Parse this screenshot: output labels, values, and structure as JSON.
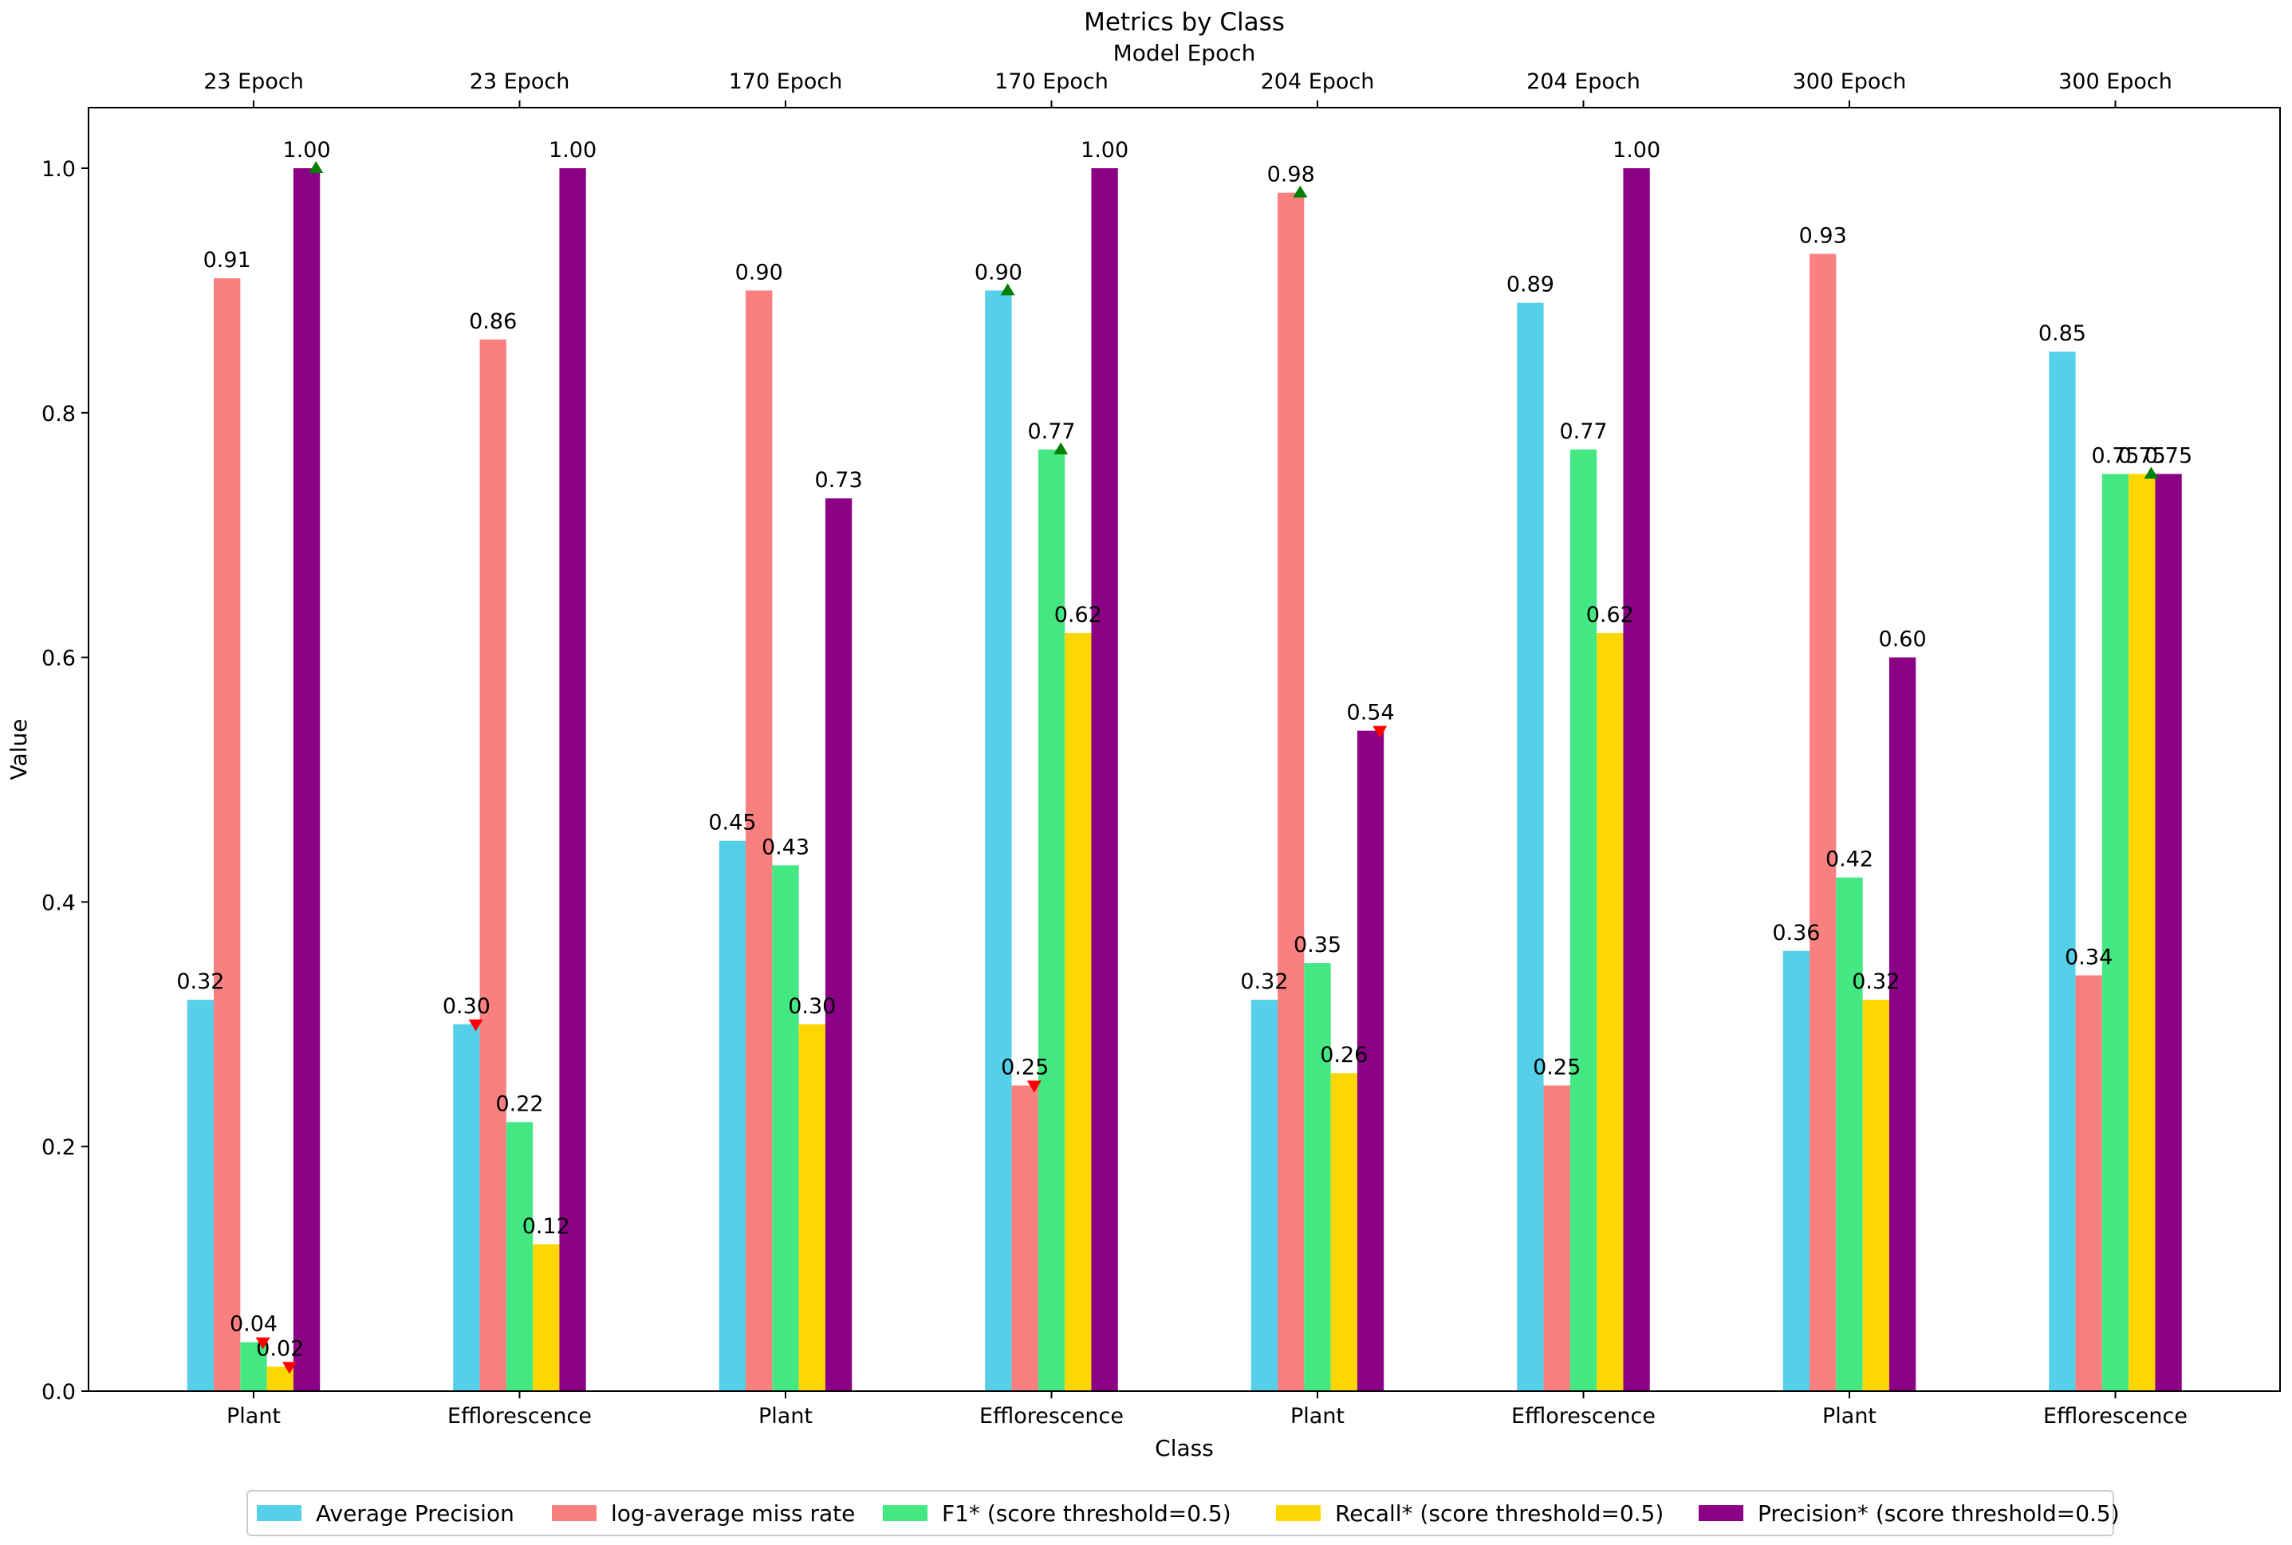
{
  "chart_data": {
    "type": "bar",
    "title": "Metrics by Class",
    "top_axis_label": "Model Epoch",
    "top_tick_labels": [
      "23 Epoch",
      "23 Epoch",
      "170 Epoch",
      "170 Epoch",
      "204 Epoch",
      "204 Epoch",
      "300 Epoch",
      "300 Epoch"
    ],
    "categories": [
      "Plant",
      "Efflorescence",
      "Plant",
      "Efflorescence",
      "Plant",
      "Efflorescence",
      "Plant",
      "Efflorescence"
    ],
    "xlabel": "Class",
    "ylabel": "Value",
    "ylim": [
      0,
      1.0
    ],
    "yticks": [
      0.0,
      0.2,
      0.4,
      0.6,
      0.8,
      1.0
    ],
    "ytick_labels": [
      "0.0",
      "0.2",
      "0.4",
      "0.6",
      "0.8",
      "1.0"
    ],
    "grid": false,
    "legend_position": "bottom",
    "series": [
      {
        "name": "Average Precision",
        "color": "#56cfe8",
        "values": [
          0.32,
          0.3,
          0.45,
          0.9,
          0.32,
          0.89,
          0.36,
          0.85
        ],
        "labels": [
          "0.32",
          "0.30",
          "0.45",
          "0.90",
          "0.32",
          "0.89",
          "0.36",
          "0.85"
        ]
      },
      {
        "name": "log-average miss rate",
        "color": "#fa8080",
        "values": [
          0.91,
          0.86,
          0.9,
          0.25,
          0.98,
          0.25,
          0.93,
          0.34
        ],
        "labels": [
          "0.91",
          "0.86",
          "0.90",
          "0.25",
          "0.98",
          "0.25",
          "0.93",
          "0.34"
        ]
      },
      {
        "name": "F1* (score threshold=0.5)",
        "color": "#44e882",
        "values": [
          0.04,
          0.22,
          0.43,
          0.77,
          0.35,
          0.77,
          0.42,
          0.75
        ],
        "labels": [
          "0.04",
          "0.22",
          "0.43",
          "0.77",
          "0.35",
          "0.77",
          "0.42",
          "0.75"
        ]
      },
      {
        "name": "Recall* (score threshold=0.5)",
        "color": "#ffd700",
        "values": [
          0.02,
          0.12,
          0.3,
          0.62,
          0.26,
          0.62,
          0.32,
          0.75
        ],
        "labels": [
          "0.02",
          "0.12",
          "0.30",
          "0.62",
          "0.26",
          "0.62",
          "0.32",
          "0.75"
        ]
      },
      {
        "name": "Precision* (score threshold=0.5)",
        "color": "#8b0085",
        "values": [
          1.0,
          1.0,
          0.73,
          1.0,
          0.54,
          1.0,
          0.6,
          0.75
        ],
        "labels": [
          "1.00",
          "1.00",
          "0.73",
          "1.00",
          "0.54",
          "1.00",
          "0.60",
          "0.75"
        ]
      }
    ],
    "markers": [
      {
        "category": 0,
        "series": 4,
        "value": 1.0,
        "direction": "up",
        "color": "#008000"
      },
      {
        "category": 0,
        "series": 2,
        "value": 0.04,
        "direction": "down",
        "color": "#ff0000"
      },
      {
        "category": 0,
        "series": 3,
        "value": 0.02,
        "direction": "down",
        "color": "#ff0000"
      },
      {
        "category": 1,
        "series": 0,
        "value": 0.3,
        "direction": "down",
        "color": "#ff0000"
      },
      {
        "category": 3,
        "series": 0,
        "value": 0.9,
        "direction": "up",
        "color": "#008000"
      },
      {
        "category": 3,
        "series": 2,
        "value": 0.77,
        "direction": "up",
        "color": "#008000"
      },
      {
        "category": 3,
        "series": 1,
        "value": 0.25,
        "direction": "down",
        "color": "#ff0000"
      },
      {
        "category": 4,
        "series": 1,
        "value": 0.98,
        "direction": "up",
        "color": "#008000"
      },
      {
        "category": 4,
        "series": 4,
        "value": 0.54,
        "direction": "down",
        "color": "#ff0000"
      },
      {
        "category": 7,
        "series": 3,
        "value": 0.75,
        "direction": "up",
        "color": "#008000"
      }
    ]
  }
}
